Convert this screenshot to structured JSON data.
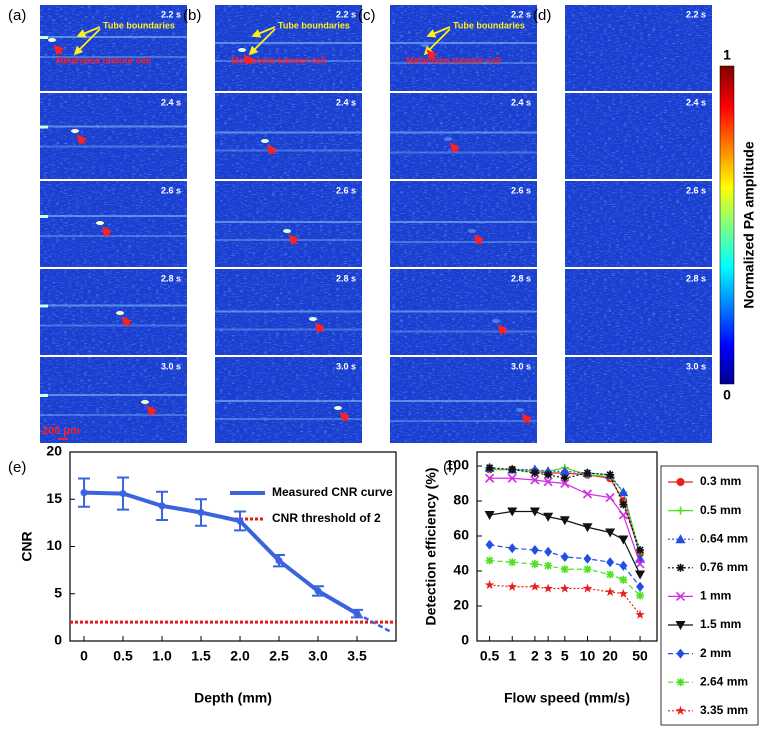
{
  "panels": [
    {
      "label": "(a)",
      "frames": [
        "2.2 s",
        "2.4 s",
        "2.6 s",
        "2.8 s",
        "3.0 s"
      ]
    },
    {
      "label": "(b)",
      "frames": [
        "2.2 s",
        "2.4 s",
        "2.6 s",
        "2.8 s",
        "3.0 s"
      ]
    },
    {
      "label": "(c)",
      "frames": [
        "2.2 s",
        "2.4 s",
        "2.6 s",
        "2.8 s",
        "3.0 s"
      ]
    },
    {
      "label": "(d)",
      "frames": [
        "2.2 s",
        "2.4 s",
        "2.6 s",
        "2.8 s",
        "3.0 s"
      ]
    }
  ],
  "annotations": {
    "tube_boundaries": "Tube boundaries",
    "tumour_cell": "Melanoma tumour cell",
    "scale_bar": "200 μm"
  },
  "colorbar": {
    "label": "Normalized PA amplitude",
    "max": "1",
    "min": "0"
  },
  "chart_data": [
    {
      "type": "line",
      "panel_label": "(e)",
      "xlabel": "Depth (mm)",
      "ylabel": "CNR",
      "x": [
        0,
        0.5,
        1,
        1.5,
        2,
        2.5,
        3,
        3.5
      ],
      "series": [
        {
          "name": "Measured CNR curve",
          "color": "#3a63e0",
          "values": [
            15.7,
            15.6,
            14.3,
            13.6,
            12.7,
            8.5,
            5.3,
            2.9
          ],
          "errors": [
            1.5,
            1.7,
            1.5,
            1.4,
            1.0,
            0.6,
            0.5,
            0.4
          ]
        }
      ],
      "extension": {
        "x": [
          3.5,
          3.95
        ],
        "values": [
          2.9,
          0.9
        ]
      },
      "threshold": {
        "name": "CNR threshold of 2",
        "value": 2,
        "color": "#e81818"
      },
      "xlim": [
        -0.18,
        4
      ],
      "ylim": [
        0,
        20
      ],
      "xticks": [
        0,
        0.5,
        {
          "value": 1,
          "label": "1.0"
        },
        1.5,
        {
          "value": 2,
          "label": "2.0"
        },
        2.5,
        {
          "value": 3,
          "label": "3.0"
        },
        3.5
      ],
      "yticks": [
        0,
        5,
        10,
        15,
        20
      ]
    },
    {
      "type": "line",
      "panel_label": "(f)",
      "xlabel": "Flow speed (mm/s)",
      "ylabel": "Detection efficiency (%)",
      "log_x": true,
      "x": [
        0.5,
        1,
        2,
        3,
        5,
        10,
        20,
        30,
        50
      ],
      "series": [
        {
          "name": "0.3 mm",
          "color": "#e8201c",
          "marker": "circle",
          "dash": "solid",
          "values": [
            98,
            98,
            97,
            96,
            96,
            95,
            93,
            80,
            50
          ]
        },
        {
          "name": "0.5 mm",
          "color": "#50e020",
          "marker": "plus",
          "dash": "solid",
          "values": [
            98,
            98,
            97,
            97,
            99,
            95,
            94,
            85,
            50
          ]
        },
        {
          "name": "0.64 mm",
          "color": "#2050e0",
          "marker": "triangle",
          "dash": "dotted",
          "values": [
            99,
            98,
            98,
            97,
            97,
            96,
            95,
            85,
            47
          ]
        },
        {
          "name": "0.76 mm",
          "color": "#111111",
          "marker": "asterisk",
          "dash": "dotted",
          "values": [
            99,
            98,
            96,
            95,
            93,
            96,
            95,
            78,
            52
          ]
        },
        {
          "name": "1 mm",
          "color": "#d030e0",
          "marker": "cross",
          "dash": "solid",
          "values": [
            93,
            93,
            92,
            91,
            90,
            84,
            82,
            72,
            44
          ]
        },
        {
          "name": "1.5 mm",
          "color": "#111111",
          "marker": "triangle-down",
          "dash": "solid",
          "values": [
            72,
            74,
            74,
            71,
            69,
            65,
            62,
            58,
            38
          ]
        },
        {
          "name": "2 mm",
          "color": "#2050e0",
          "marker": "diamond",
          "dash": "dashed",
          "values": [
            55,
            53,
            52,
            51,
            48,
            47,
            45,
            43,
            31
          ]
        },
        {
          "name": "2.64 mm",
          "color": "#50e020",
          "marker": "asterisk",
          "dash": "dashed",
          "values": [
            46,
            45,
            44,
            43,
            41,
            41,
            38,
            35,
            26
          ]
        },
        {
          "name": "3.35 mm",
          "color": "#e8201c",
          "marker": "star",
          "dash": "dotted",
          "values": [
            32,
            31,
            31,
            30,
            30,
            30,
            28,
            27,
            15
          ]
        }
      ],
      "xlim": [
        0.34,
        84
      ],
      "ylim": [
        0,
        108
      ],
      "xticks": [
        0.5,
        1,
        2,
        3,
        5,
        10,
        20,
        50
      ],
      "yticks": [
        0,
        20,
        40,
        60,
        80,
        100
      ]
    }
  ]
}
